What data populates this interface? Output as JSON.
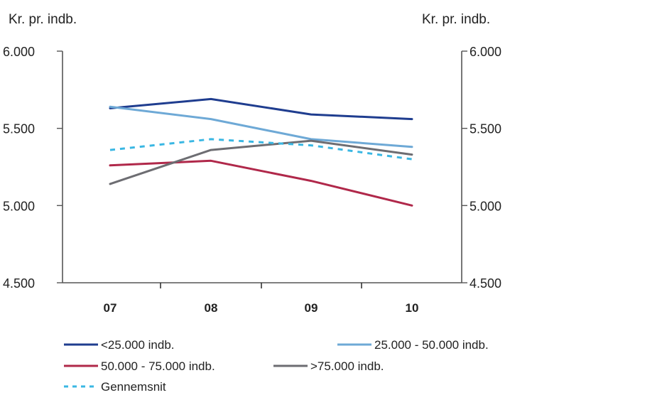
{
  "chart_data": {
    "type": "line",
    "title": "",
    "y_unit_left": "Kr. pr. indb.",
    "y_unit_right": "Kr. pr. indb.",
    "categories": [
      "07",
      "08",
      "09",
      "10"
    ],
    "ylim": [
      4500,
      6000
    ],
    "yticks": [
      4500,
      5000,
      5500,
      6000
    ],
    "ytick_labels": [
      "4.500",
      "5.000",
      "5.500",
      "6.000"
    ],
    "grid": false,
    "legend_position": "bottom",
    "series": [
      {
        "name": "<25.000 indb.",
        "values": [
          5630,
          5690,
          5590,
          5560
        ],
        "color": "#1f3d8f",
        "style": "solid"
      },
      {
        "name": "25.000 - 50.000 indb.",
        "values": [
          5640,
          5560,
          5430,
          5380
        ],
        "color": "#6ea9d6",
        "style": "solid"
      },
      {
        "name": "50.000 - 75.000 indb.",
        "values": [
          5260,
          5290,
          5160,
          5000
        ],
        "color": "#b0284a",
        "style": "solid"
      },
      {
        "name": ">75.000 indb.",
        "values": [
          5140,
          5360,
          5420,
          5330
        ],
        "color": "#6d6d72",
        "style": "solid"
      },
      {
        "name": "Gennemsnit",
        "values": [
          5360,
          5430,
          5390,
          5300
        ],
        "color": "#3ab7e3",
        "style": "dashed"
      }
    ]
  }
}
